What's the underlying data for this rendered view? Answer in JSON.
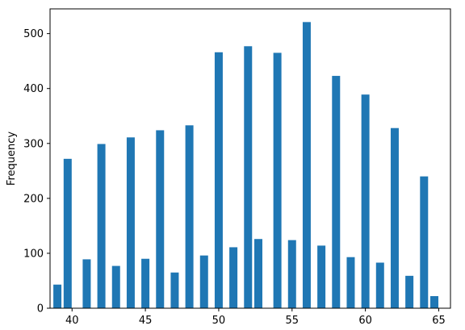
{
  "chart_data": {
    "type": "bar",
    "title": "",
    "xlabel": "",
    "ylabel": "Frequency",
    "xlim": [
      38.5,
      65.8
    ],
    "ylim": [
      0,
      545
    ],
    "x_ticks": [
      40,
      45,
      50,
      55,
      60,
      65
    ],
    "y_ticks": [
      0,
      100,
      200,
      300,
      400,
      500
    ],
    "bar_width": 0.55,
    "grid": false,
    "legend": "none",
    "color": "#1f77b4",
    "x": [
      39,
      39.7,
      41,
      42,
      43,
      44,
      45,
      46,
      47,
      48,
      49,
      50,
      51,
      52,
      52.7,
      54,
      55,
      56,
      57,
      58,
      59,
      60,
      61,
      62,
      63,
      64,
      64.7
    ],
    "values": [
      43,
      272,
      89,
      299,
      77,
      311,
      90,
      324,
      65,
      333,
      96,
      466,
      111,
      477,
      126,
      465,
      124,
      521,
      114,
      423,
      93,
      389,
      83,
      328,
      59,
      240,
      22
    ]
  }
}
